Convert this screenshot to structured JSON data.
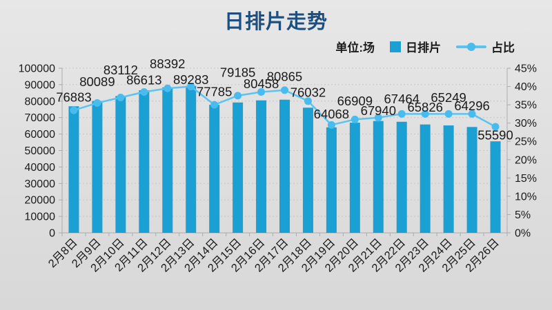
{
  "title": "日排片走势",
  "legend": {
    "unit_label": "单位:场",
    "bar_series_label": "日排片",
    "line_series_label": "占比"
  },
  "colors": {
    "title": "#1c4e80",
    "text": "#1a1a1a",
    "bar": "#1ba0d4",
    "line": "#5bc3f0",
    "dot": "#49bcef",
    "grid": "#c6c6c6",
    "axis": "#ababab"
  },
  "chart_data": {
    "type": "bar",
    "subtype": "combo-bar-line",
    "title": "日排片走势",
    "unit": "场",
    "legend_position": "top-right",
    "grid": "horizontal-dotted",
    "categories": [
      "2月8日",
      "2月9日",
      "2月10日",
      "2月11日",
      "2月12日",
      "2月13日",
      "2月14日",
      "2月15日",
      "2月16日",
      "2月17日",
      "2月18日",
      "2月19日",
      "2月20日",
      "2月21日",
      "2月22日",
      "2月23日",
      "2月24日",
      "2月25日",
      "2月26日"
    ],
    "series": [
      {
        "name": "日排片",
        "type": "bar",
        "axis": "left",
        "values": [
          76883,
          80089,
          83112,
          86613,
          88392,
          89283,
          77785,
          79185,
          80458,
          80865,
          76032,
          64068,
          66909,
          67940,
          67464,
          65826,
          65249,
          64296,
          55590
        ]
      },
      {
        "name": "占比",
        "type": "line",
        "axis": "right",
        "unit": "%",
        "values": [
          33.5,
          35.5,
          37,
          38.5,
          39.5,
          40,
          35,
          37.5,
          38.5,
          39,
          36,
          29.5,
          31,
          31.5,
          32.5,
          32.5,
          32.5,
          32.5,
          29
        ]
      }
    ],
    "left_axis": {
      "min": 0,
      "max": 100000,
      "step": 10000,
      "tick_labels": [
        "100000",
        "90000",
        "80000",
        "70000",
        "60000",
        "50000",
        "40000",
        "30000",
        "20000",
        "10000",
        "0"
      ]
    },
    "right_axis": {
      "min": 0,
      "max": 45,
      "step": 5,
      "tick_labels": [
        "45%",
        "40%",
        "35%",
        "30%",
        "25%",
        "20%",
        "15%",
        "10%",
        "5%",
        "0%"
      ]
    }
  }
}
